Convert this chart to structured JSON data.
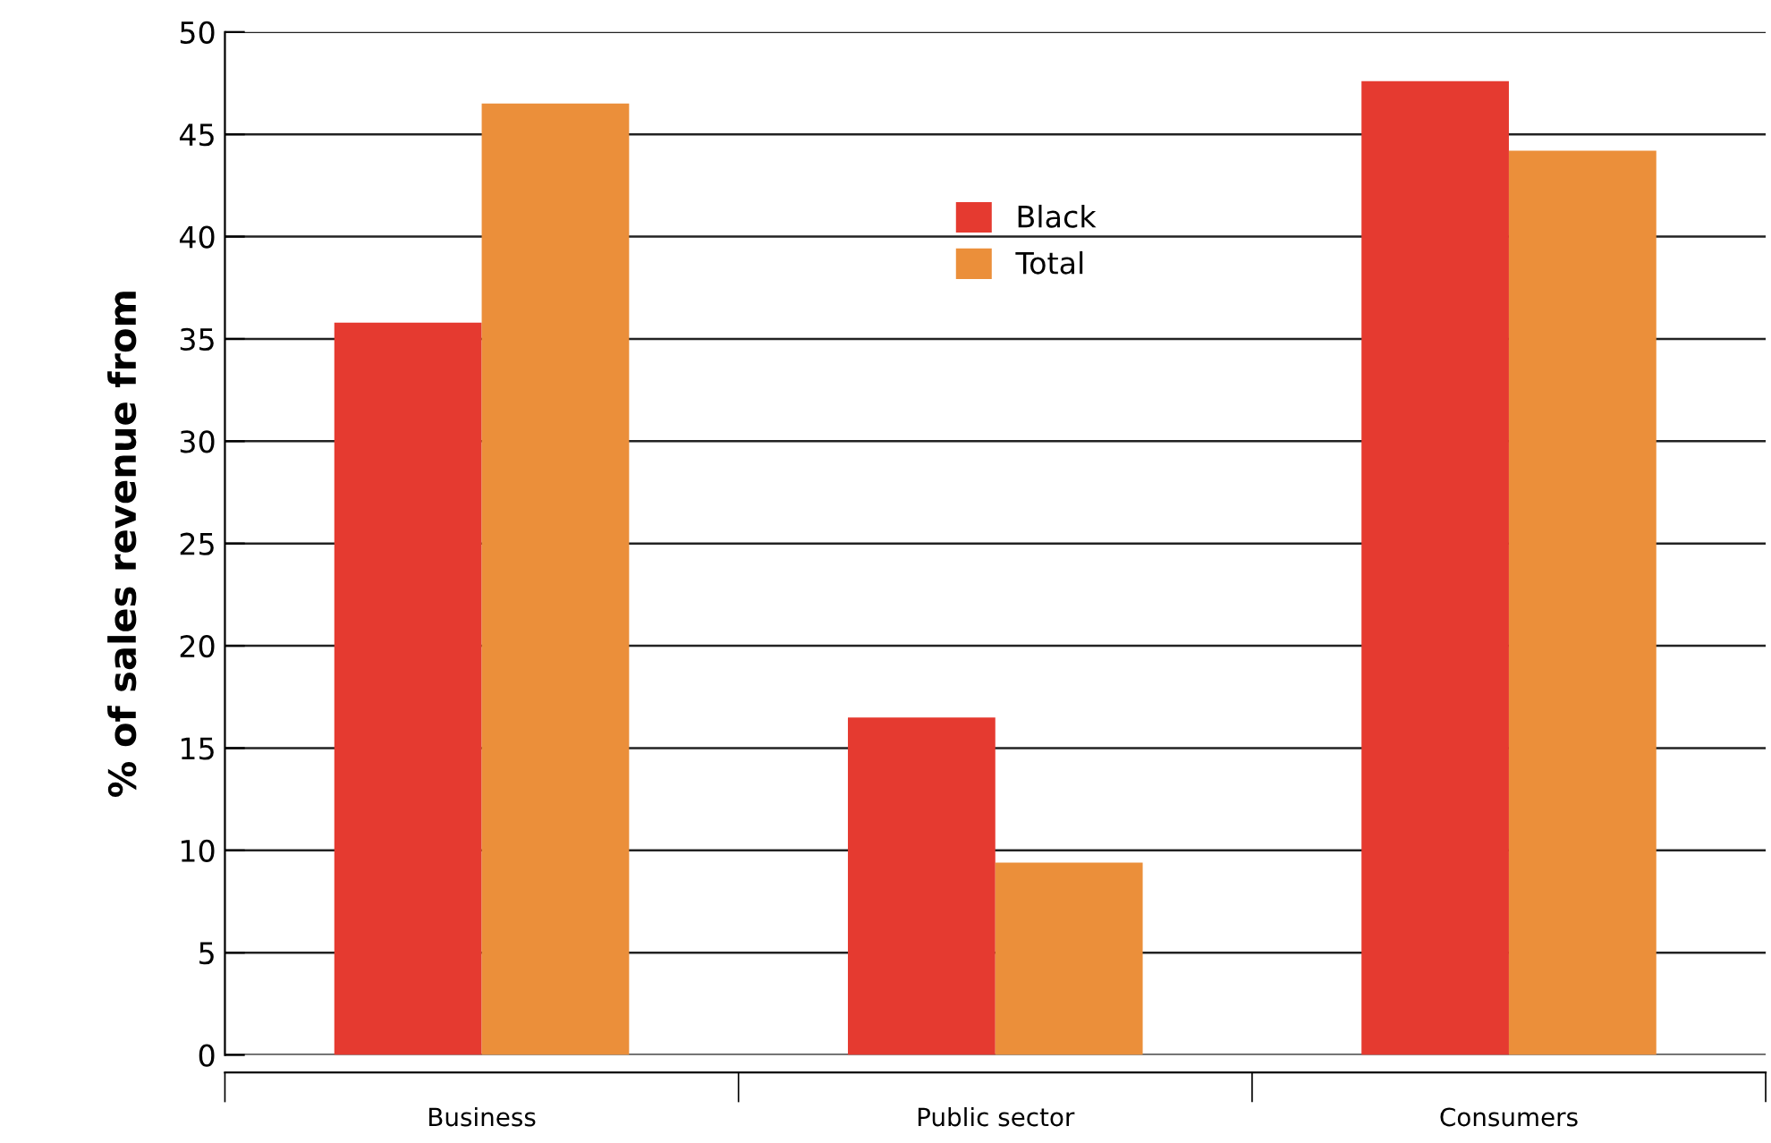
{
  "chart_data": {
    "type": "bar",
    "ylabel": "% of sales revenue from",
    "categories": [
      "Business",
      "Public sector",
      "Consumers"
    ],
    "series": [
      {
        "name": "Black",
        "color": "#e53a30",
        "values": [
          35.8,
          16.5,
          47.6
        ]
      },
      {
        "name": "Total",
        "color": "#eb8f3a",
        "values": [
          46.5,
          9.4,
          44.2
        ]
      }
    ],
    "ylim": [
      0,
      50
    ],
    "yticks": [
      0,
      5,
      10,
      15,
      20,
      25,
      30,
      35,
      40,
      45,
      50
    ],
    "grid": "y",
    "legend": "top"
  }
}
